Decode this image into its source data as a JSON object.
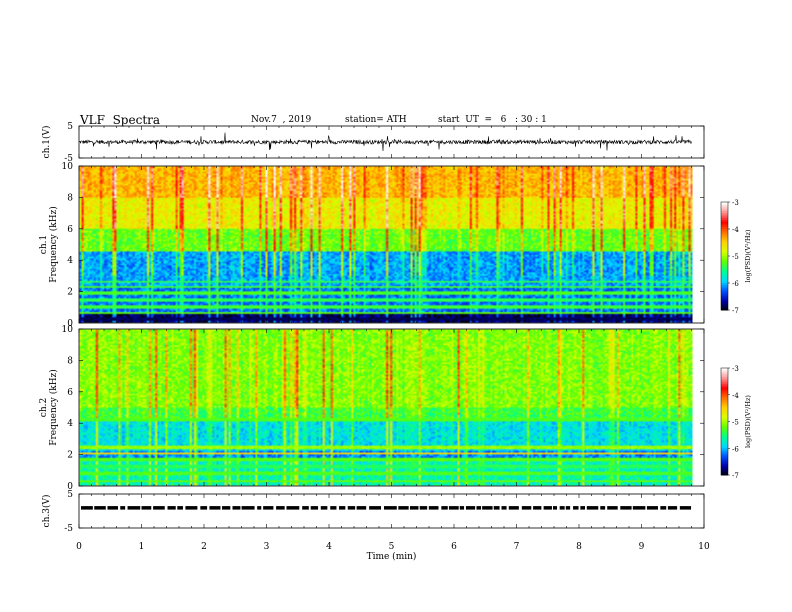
{
  "header": {
    "title": "VLF  Spectra",
    "date": "Nov.7  , 2019",
    "station": "station= ATH",
    "start": "start  UT  =   6   : 30 : 1"
  },
  "chart_data": [
    {
      "type": "line",
      "panel": "ch1-voltage",
      "ylabel": "ch.1(V)",
      "ylim": [
        -5,
        5
      ],
      "yticks": [
        "5",
        "-5"
      ],
      "x_range_min": [
        0,
        9.8
      ],
      "series": [
        {
          "baseline": 0,
          "noise_amplitude": 0.6,
          "spike_amplitude": 1.3,
          "color": "#000000"
        }
      ]
    },
    {
      "type": "heatmap",
      "panel": "ch1-spectrogram",
      "ylabel": [
        "ch.1",
        "Frequency  (kHz)"
      ],
      "ylim": [
        0,
        10
      ],
      "yticks": [
        "0",
        "2",
        "4",
        "6",
        "8",
        "10"
      ],
      "colorbar": {
        "label": "log(PSD)(V²/Hz)",
        "range": [
          -7,
          -3
        ],
        "ticks": [
          "-3",
          "-4",
          "-5",
          "-6",
          "-7"
        ]
      },
      "features": "high PSD (-3.5) above 8 kHz in vertical bursts; weak (-6.5) 1-4 kHz band; horizontal green interference lines below 2.5 kHz"
    },
    {
      "type": "heatmap",
      "panel": "ch2-spectrogram",
      "ylabel": [
        "ch.2",
        "Frequency  (kHz)"
      ],
      "ylim": [
        0,
        10
      ],
      "yticks": [
        "0",
        "2",
        "4",
        "6",
        "8",
        "10"
      ],
      "colorbar": {
        "label": "log(PSD)(V²/Hz)",
        "range": [
          -7,
          -3
        ],
        "ticks": [
          "-3",
          "-4",
          "-5",
          "-6",
          "-7"
        ]
      },
      "features": "mostly green (-4.5) above 5 kHz; cyan/blue (-5.5) 1.5-4.5 kHz; strong lines near 2 kHz"
    },
    {
      "type": "line",
      "panel": "ch3-voltage",
      "ylabel": "ch.3(V)",
      "ylim": [
        -5,
        5
      ],
      "yticks": [
        "5",
        "-5"
      ],
      "series": [
        {
          "baseline": 1.0,
          "style": "dashed-blocks",
          "color": "#000000"
        }
      ]
    }
  ],
  "x_axis": {
    "label": "Time  (min)",
    "range": [
      0,
      10
    ],
    "ticks": [
      "0",
      "1",
      "2",
      "3",
      "4",
      "5",
      "6",
      "7",
      "8",
      "9",
      "10"
    ]
  },
  "colors": {
    "colormap": [
      "#000000",
      "#0000aa",
      "#0050ff",
      "#00d8ff",
      "#00ff90",
      "#60ff00",
      "#d8ff00",
      "#ffd000",
      "#ff7000",
      "#ff0000",
      "#ff9090",
      "#ffffff"
    ]
  }
}
